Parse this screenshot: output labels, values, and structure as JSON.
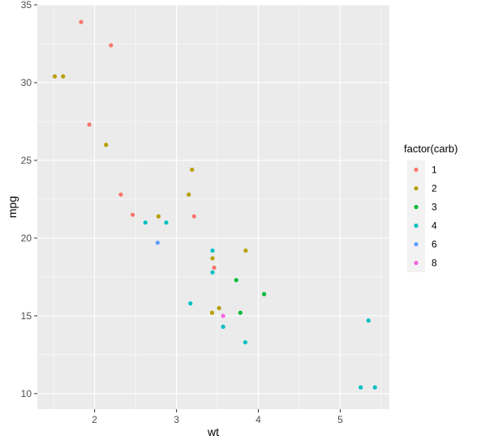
{
  "chart_data": {
    "type": "scatter",
    "title": "",
    "xlabel": "wt",
    "ylabel": "mpg",
    "xlim": [
      1.3,
      5.6
    ],
    "ylim": [
      9.0,
      35.0
    ],
    "x_ticks": [
      2,
      3,
      4,
      5
    ],
    "y_ticks": [
      10,
      15,
      20,
      25,
      30,
      35
    ],
    "grid": true,
    "panel_background": "#ebebeb",
    "grid_color": "#ffffff",
    "legend": {
      "title": "factor(carb)",
      "placement": "right"
    },
    "series": [
      {
        "name": "1",
        "color": "#f8766d",
        "points": [
          {
            "x": 1.835,
            "y": 33.9
          },
          {
            "x": 2.2,
            "y": 32.4
          },
          {
            "x": 1.935,
            "y": 27.3
          },
          {
            "x": 2.32,
            "y": 22.8
          },
          {
            "x": 2.465,
            "y": 21.5
          },
          {
            "x": 3.215,
            "y": 21.4
          },
          {
            "x": 3.46,
            "y": 18.1
          }
        ]
      },
      {
        "name": "2",
        "color": "#b79f00",
        "points": [
          {
            "x": 1.513,
            "y": 30.4
          },
          {
            "x": 1.615,
            "y": 30.4
          },
          {
            "x": 2.14,
            "y": 26.0
          },
          {
            "x": 3.19,
            "y": 24.4
          },
          {
            "x": 3.15,
            "y": 22.8
          },
          {
            "x": 2.78,
            "y": 21.4
          },
          {
            "x": 3.44,
            "y": 18.7
          },
          {
            "x": 3.845,
            "y": 19.2
          },
          {
            "x": 3.52,
            "y": 15.5
          },
          {
            "x": 3.435,
            "y": 15.2
          }
        ]
      },
      {
        "name": "3",
        "color": "#00ba38",
        "points": [
          {
            "x": 4.07,
            "y": 16.4
          },
          {
            "x": 3.73,
            "y": 17.3
          },
          {
            "x": 3.78,
            "y": 15.2
          }
        ]
      },
      {
        "name": "4",
        "color": "#00bfc4",
        "points": [
          {
            "x": 2.62,
            "y": 21.0
          },
          {
            "x": 2.875,
            "y": 21.0
          },
          {
            "x": 3.44,
            "y": 19.2
          },
          {
            "x": 3.44,
            "y": 17.8
          },
          {
            "x": 3.17,
            "y": 15.8
          },
          {
            "x": 3.57,
            "y": 14.3
          },
          {
            "x": 3.84,
            "y": 13.3
          },
          {
            "x": 5.25,
            "y": 10.4
          },
          {
            "x": 5.424,
            "y": 10.4
          },
          {
            "x": 5.345,
            "y": 14.7
          }
        ]
      },
      {
        "name": "6",
        "color": "#619cff",
        "points": [
          {
            "x": 2.77,
            "y": 19.7
          }
        ]
      },
      {
        "name": "8",
        "color": "#f564e3",
        "points": [
          {
            "x": 3.57,
            "y": 15.0
          }
        ]
      }
    ]
  }
}
